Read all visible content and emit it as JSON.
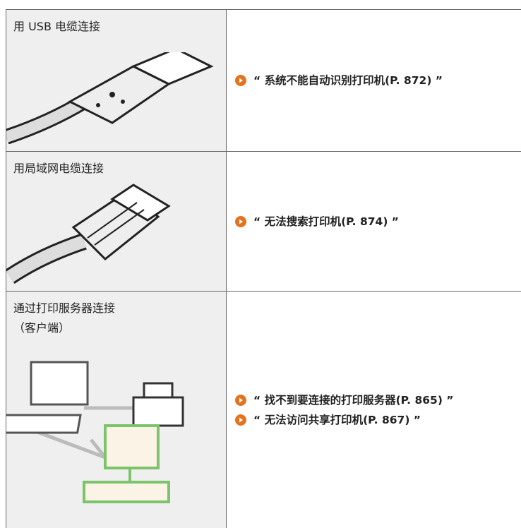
{
  "rows": [
    {
      "label": [
        "用 USB 电缆连接"
      ],
      "links": [
        "“ 系统不能自动识别打印机(P. 872) ”"
      ]
    },
    {
      "label": [
        "用局域网电缆连接"
      ],
      "links": [
        "“ 无法搜索打印机(P. 874) ”"
      ]
    },
    {
      "label": [
        "通过打印服务器连接",
        "（客户端）"
      ],
      "links": [
        "“ 找不到要连接的打印服务器(P. 865) ”",
        "“ 无法访问共享打印机(P. 867) ”"
      ]
    }
  ]
}
